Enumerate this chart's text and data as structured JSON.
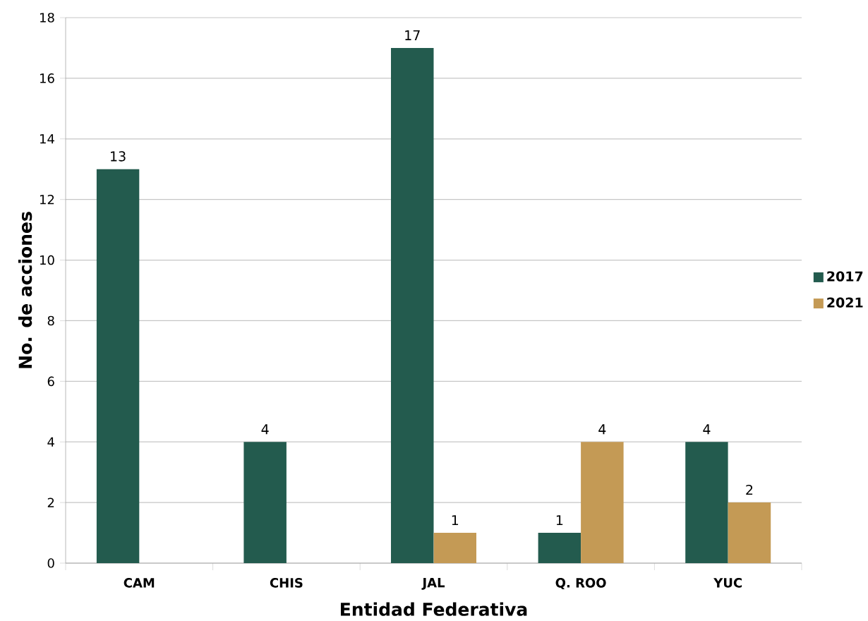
{
  "chart_data": {
    "type": "bar",
    "xlabel": "Entidad Federativa",
    "ylabel": "No. de acciones",
    "categories": [
      "CAM",
      "CHIS",
      "JAL",
      "Q. ROO",
      "YUC"
    ],
    "series": [
      {
        "name": "2017",
        "color": "#235b4e",
        "values": [
          13,
          4,
          17,
          1,
          4
        ]
      },
      {
        "name": "2021",
        "color": "#c49a55",
        "values": [
          null,
          null,
          1,
          4,
          2
        ]
      }
    ],
    "ylim": [
      0,
      18
    ],
    "yticks": [
      0,
      2,
      4,
      6,
      8,
      10,
      12,
      14,
      16,
      18
    ],
    "grid": "y",
    "legend": "right",
    "data_labels": true
  }
}
